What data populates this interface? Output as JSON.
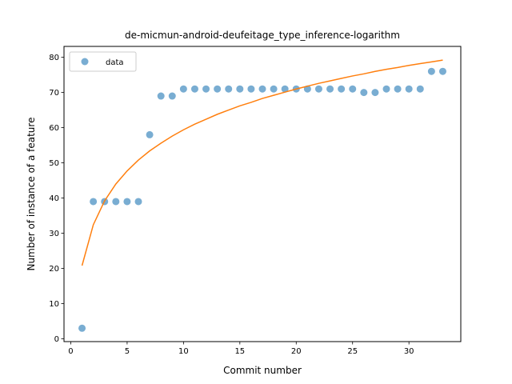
{
  "chart_data": {
    "type": "scatter",
    "title": "de-micmun-android-deufeitage_type_inference-logarithm",
    "xlabel": "Commit number",
    "ylabel": "Number of instance of a feature",
    "xlim": [
      -0.6,
      34.6
    ],
    "ylim": [
      -0.8,
      83.1
    ],
    "xticks": [
      0,
      5,
      10,
      15,
      20,
      25,
      30
    ],
    "yticks": [
      0,
      10,
      20,
      30,
      40,
      50,
      60,
      70,
      80
    ],
    "grid": false,
    "legend": {
      "location": "upper-left",
      "entries": [
        "data"
      ]
    },
    "series": [
      {
        "name": "data",
        "kind": "scatter",
        "color": "#1f77b4",
        "x": [
          1,
          2,
          3,
          4,
          5,
          6,
          7,
          8,
          9,
          10,
          11,
          12,
          13,
          14,
          15,
          16,
          17,
          18,
          19,
          20,
          21,
          22,
          23,
          24,
          25,
          26,
          27,
          28,
          29,
          30,
          31,
          32,
          33
        ],
        "y": [
          3,
          39,
          39,
          39,
          39,
          39,
          58,
          69,
          69,
          71,
          71,
          71,
          71,
          71,
          71,
          71,
          71,
          71,
          71,
          71,
          71,
          71,
          71,
          71,
          71,
          70,
          70,
          71,
          71,
          71,
          71,
          76,
          76
        ]
      },
      {
        "kind": "line",
        "color": "#ff7f0e",
        "x": [
          1,
          2,
          3,
          4,
          5,
          6,
          7,
          8,
          9,
          10,
          11,
          12,
          13,
          14,
          15,
          16,
          17,
          18,
          19,
          20,
          21,
          22,
          23,
          24,
          25,
          26,
          27,
          28,
          29,
          30,
          31,
          32,
          33
        ],
        "y": [
          20.8,
          32.4,
          39.2,
          44.0,
          47.7,
          50.8,
          53.4,
          55.6,
          57.6,
          59.4,
          61.0,
          62.4,
          63.8,
          65.0,
          66.2,
          67.2,
          68.3,
          69.2,
          70.1,
          71.0,
          71.8,
          72.6,
          73.3,
          74.0,
          74.7,
          75.3,
          76.0,
          76.6,
          77.1,
          77.7,
          78.2,
          78.7,
          79.2
        ]
      }
    ]
  }
}
